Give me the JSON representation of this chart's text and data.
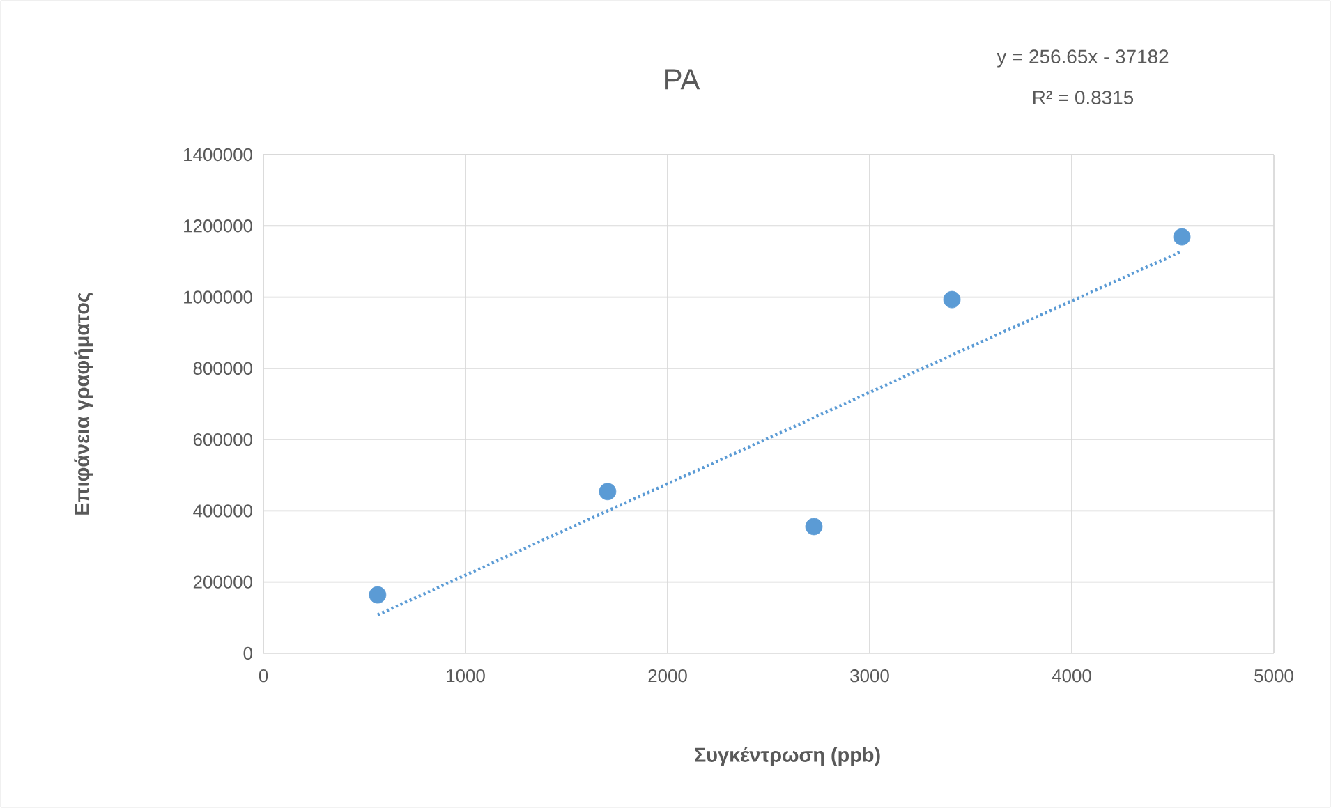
{
  "chart_data": {
    "type": "scatter",
    "title": "PA",
    "xlabel": "Συγκέντρωση (ppb)",
    "ylabel": "Επιφάνεια γραφήματος",
    "annotations": [
      "y = 256.65x - 37182",
      "R² = 0.8315"
    ],
    "xlim": [
      0,
      5000
    ],
    "ylim": [
      0,
      1400000
    ],
    "xticks": [
      0,
      1000,
      2000,
      3000,
      4000,
      5000
    ],
    "yticks": [
      0,
      200000,
      400000,
      600000,
      800000,
      1000000,
      1200000,
      1400000
    ],
    "grid": true,
    "series": [
      {
        "color": "#5b9bd5",
        "marker": "circle",
        "x": [
          565,
          1703,
          2724,
          3407,
          4545
        ],
        "values": [
          164000,
          454000,
          356000,
          993000,
          1169000
        ]
      },
      {
        "type": "line",
        "color": "#5b9bd5",
        "marker": "none",
        "line_style": "dotted",
        "x": [
          565,
          4545
        ],
        "values": [
          108000,
          1129000
        ]
      }
    ]
  }
}
